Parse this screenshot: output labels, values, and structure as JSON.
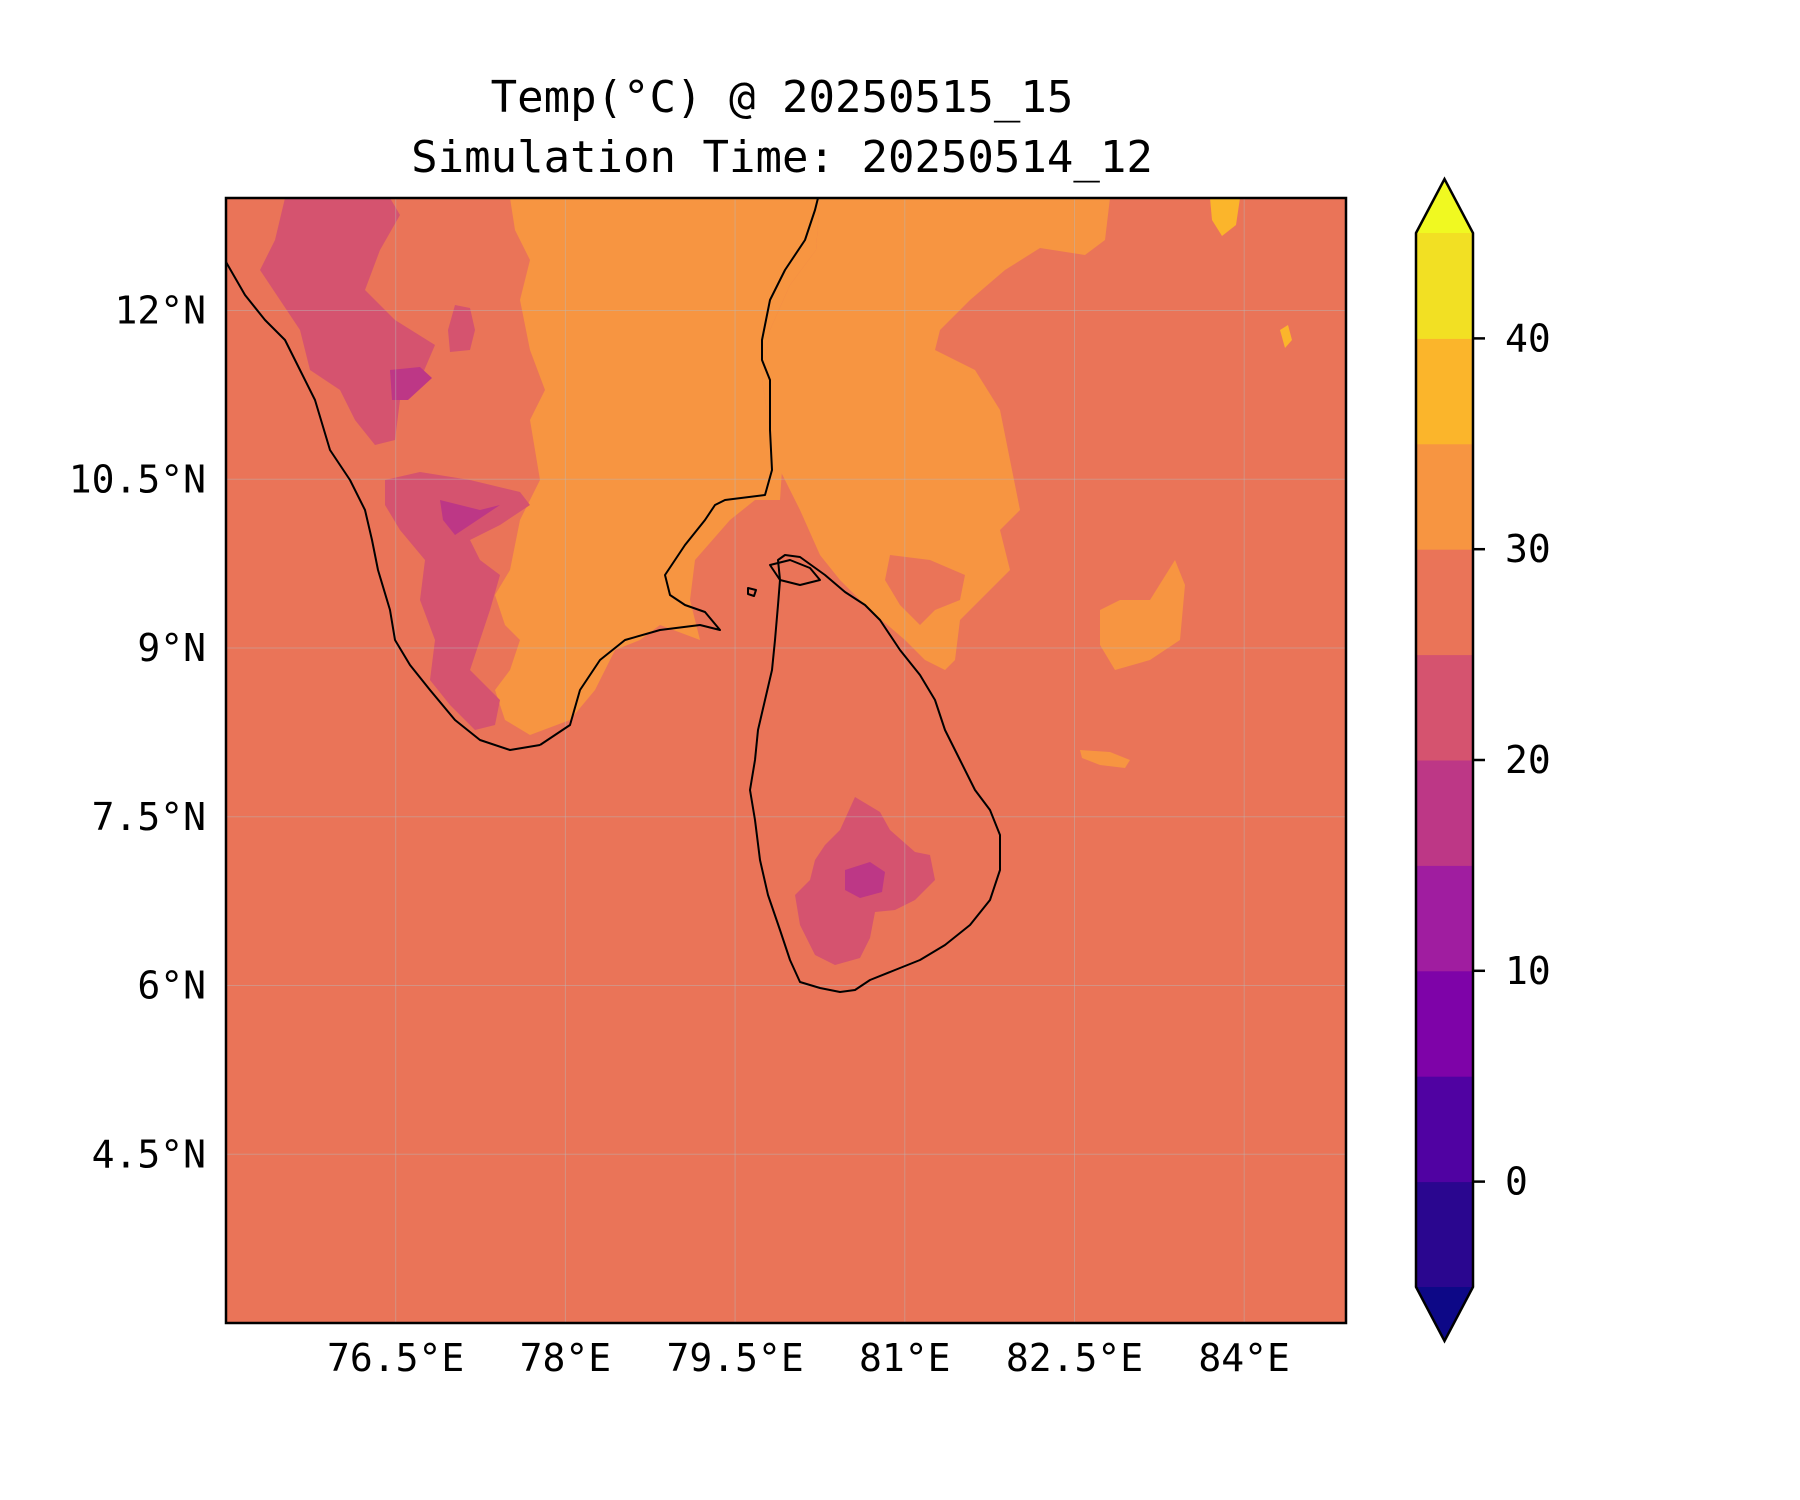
{
  "title": {
    "line1": "Temp(°C) @ 20250515_15",
    "line2": "Simulation Time: 20250514_12"
  },
  "map": {
    "lon_range": [
      75.0,
      84.9
    ],
    "lat_range": [
      3.0,
      13.0
    ],
    "lon_ticks": [
      {
        "value": 76.5,
        "label": "76.5°E"
      },
      {
        "value": 78.0,
        "label": "78°E"
      },
      {
        "value": 79.5,
        "label": "79.5°E"
      },
      {
        "value": 81.0,
        "label": "81°E"
      },
      {
        "value": 82.5,
        "label": "82.5°E"
      },
      {
        "value": 84.0,
        "label": "84°E"
      }
    ],
    "lat_ticks": [
      {
        "value": 12.0,
        "label": "12°N"
      },
      {
        "value": 10.5,
        "label": "10.5°N"
      },
      {
        "value": 9.0,
        "label": "9°N"
      },
      {
        "value": 7.5,
        "label": "7.5°N"
      },
      {
        "value": 6.0,
        "label": "6°N"
      },
      {
        "value": 4.5,
        "label": "4.5°N"
      }
    ],
    "gridlines": true,
    "background_level": "25-30"
  },
  "colorbar": {
    "range": [
      -5,
      45
    ],
    "extend": "both",
    "under_color": "#0d0887",
    "over_color": "#f0f921",
    "levels": [
      {
        "min": -5,
        "max": 0,
        "color": "#2a068f"
      },
      {
        "min": 0,
        "max": 5,
        "color": "#5002a2"
      },
      {
        "min": 5,
        "max": 10,
        "color": "#7e03a8"
      },
      {
        "min": 10,
        "max": 15,
        "color": "#a01da0"
      },
      {
        "min": 15,
        "max": 20,
        "color": "#bd3786"
      },
      {
        "min": 20,
        "max": 25,
        "color": "#d5536f"
      },
      {
        "min": 25,
        "max": 30,
        "color": "#ea7458"
      },
      {
        "min": 30,
        "max": 35,
        "color": "#f79541"
      },
      {
        "min": 35,
        "max": 40,
        "color": "#fbb52b"
      },
      {
        "min": 40,
        "max": 45,
        "color": "#f2e023"
      }
    ],
    "ticks": [
      {
        "value": 0,
        "label": "0"
      },
      {
        "value": 10,
        "label": "10"
      },
      {
        "value": 20,
        "label": "20"
      },
      {
        "value": 30,
        "label": "30"
      },
      {
        "value": 40,
        "label": "40"
      }
    ]
  }
}
